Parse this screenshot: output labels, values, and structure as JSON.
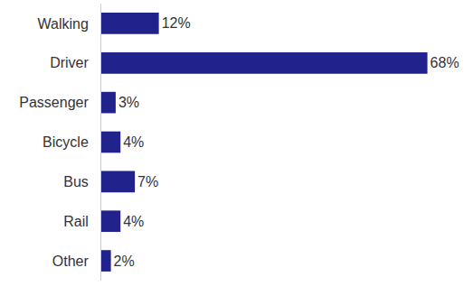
{
  "chart_data": {
    "type": "bar",
    "orientation": "horizontal",
    "categories": [
      "Walking",
      "Driver",
      "Passenger",
      "Bicycle",
      "Bus",
      "Rail",
      "Other"
    ],
    "values": [
      12,
      68,
      3,
      4,
      7,
      4,
      2
    ],
    "value_labels": [
      "12%",
      "68%",
      "3%",
      "4%",
      "7%",
      "4%",
      "2%"
    ],
    "color": "#22228c",
    "xlim": [
      0,
      76
    ],
    "grid": false,
    "data_labels": true,
    "tick_labels": "y"
  }
}
